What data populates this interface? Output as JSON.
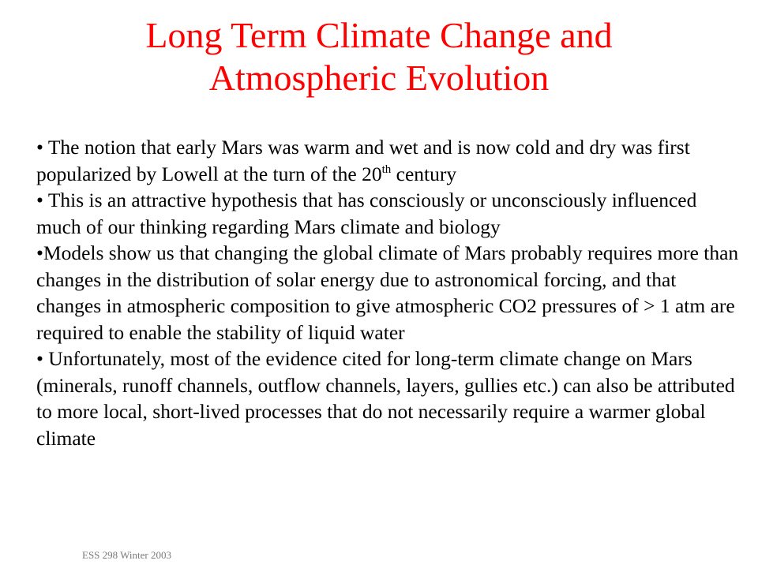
{
  "colors": {
    "title": "#ff0000",
    "text": "#000000",
    "background": "#ffffff",
    "footer": "#7a7a7a"
  },
  "slide": {
    "title_line1": "Long Term Climate Change and",
    "title_line2": "Atmospheric Evolution",
    "bullets": [
      {
        "text_before": "• The notion that early Mars was warm and wet and is now cold and dry was first popularized by Lowell at the turn of the 20",
        "superscript": "th",
        "text_after": " century"
      },
      {
        "text": "• This is an attractive hypothesis that has consciously or unconsciously influenced much of our thinking regarding Mars climate and biology"
      },
      {
        "text": "•Models show us that changing the global climate of Mars probably requires more than changes in the distribution of solar energy due to astronomical forcing, and that changes in atmospheric composition to give atmospheric CO2 pressures of > 1 atm are required to enable the stability of liquid water"
      },
      {
        "text": "• Unfortunately, most of the evidence cited for long-term climate change on Mars (minerals, runoff channels, outflow channels, layers, gullies etc.) can also be attributed to more local, short-lived processes that do not necessarily require a warmer global climate"
      }
    ],
    "footer": "ESS 298 Winter 2003"
  }
}
